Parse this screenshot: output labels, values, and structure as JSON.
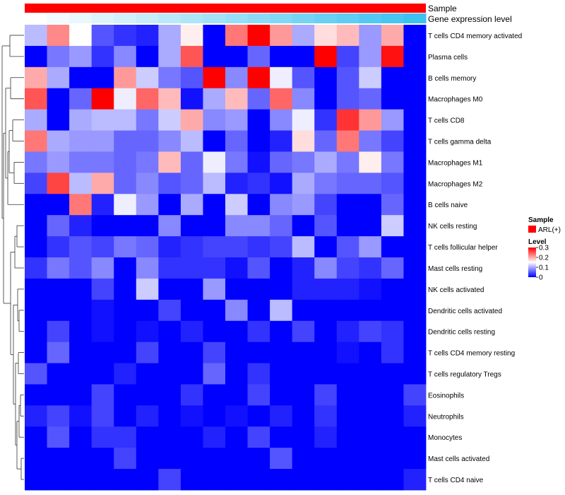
{
  "chart_data": {
    "type": "heatmap",
    "annotation_tracks": [
      {
        "name": "Sample",
        "color": "#ff0000"
      },
      {
        "name": "Gene expression level",
        "gradient": [
          "#ffffff",
          "#3bc2f0"
        ]
      }
    ],
    "rows": [
      "T cells CD4 memory activated",
      "Plasma cells",
      "B cells memory",
      "Macrophages M0",
      "T cells CD8",
      "T cells gamma delta",
      "Macrophages M1",
      "Macrophages M2",
      "B cells naive",
      "NK cells resting",
      "T cells follicular helper",
      "Mast cells resting",
      "NK cells activated",
      "Dendritic cells activated",
      "Dendritic cells resting",
      "T cells CD4 memory resting",
      "T cells regulatory  Tregs",
      "Eosinophils",
      "Neutrophils",
      "Monocytes",
      "Mast cells activated",
      "T cells CD4 naive"
    ],
    "columns": 18,
    "values": [
      [
        0.11,
        0.22,
        0.15,
        0.05,
        0.03,
        0.02,
        0.1,
        0.16,
        0.0,
        0.23,
        0.3,
        0.21,
        0.1,
        0.17,
        0.19,
        0.09,
        0.2,
        0.0
      ],
      [
        0.0,
        0.07,
        0.09,
        0.03,
        0.08,
        0.0,
        0.1,
        0.25,
        0.0,
        0.0,
        0.06,
        0.0,
        0.0,
        0.3,
        0.04,
        0.09,
        0.29,
        0.0
      ],
      [
        0.2,
        0.1,
        0.0,
        0.0,
        0.21,
        0.12,
        0.07,
        0.05,
        0.3,
        0.08,
        0.3,
        0.14,
        0.05,
        0.0,
        0.05,
        0.12,
        0.0,
        0.0
      ],
      [
        0.25,
        0.0,
        0.06,
        0.3,
        0.14,
        0.24,
        0.19,
        0.01,
        0.1,
        0.19,
        0.06,
        0.24,
        0.08,
        0.0,
        0.05,
        0.06,
        0.0,
        0.0
      ],
      [
        0.1,
        0.0,
        0.1,
        0.11,
        0.11,
        0.07,
        0.12,
        0.2,
        0.08,
        0.09,
        0.0,
        0.08,
        0.14,
        0.03,
        0.27,
        0.21,
        0.09,
        0.0
      ],
      [
        0.23,
        0.1,
        0.09,
        0.09,
        0.06,
        0.06,
        0.08,
        0.11,
        0.0,
        0.06,
        0.0,
        0.02,
        0.17,
        0.06,
        0.23,
        0.07,
        0.04,
        0.0
      ],
      [
        0.07,
        0.09,
        0.07,
        0.07,
        0.06,
        0.07,
        0.19,
        0.06,
        0.14,
        0.07,
        0.01,
        0.06,
        0.07,
        0.1,
        0.07,
        0.16,
        0.07,
        0.0
      ],
      [
        0.04,
        0.26,
        0.11,
        0.2,
        0.06,
        0.08,
        0.05,
        0.06,
        0.11,
        0.02,
        0.03,
        0.01,
        0.1,
        0.07,
        0.06,
        0.06,
        0.05,
        0.0
      ],
      [
        0.0,
        0.0,
        0.23,
        0.02,
        0.14,
        0.09,
        0.0,
        0.1,
        0.0,
        0.12,
        0.0,
        0.08,
        0.09,
        0.04,
        0.0,
        0.0,
        0.06,
        0.0
      ],
      [
        0.0,
        0.06,
        0.02,
        0.0,
        0.0,
        0.0,
        0.08,
        0.0,
        0.0,
        0.08,
        0.08,
        0.06,
        0.0,
        0.05,
        0.0,
        0.0,
        0.12,
        0.0
      ],
      [
        0.0,
        0.03,
        0.05,
        0.04,
        0.07,
        0.06,
        0.02,
        0.03,
        0.04,
        0.04,
        0.03,
        0.04,
        0.11,
        0.0,
        0.05,
        0.09,
        0.0,
        0.0
      ],
      [
        0.03,
        0.07,
        0.05,
        0.08,
        0.0,
        0.08,
        0.03,
        0.03,
        0.03,
        0.01,
        0.05,
        0.0,
        0.02,
        0.08,
        0.04,
        0.03,
        0.06,
        0.0
      ],
      [
        0.0,
        0.0,
        0.0,
        0.04,
        0.0,
        0.12,
        0.0,
        0.0,
        0.09,
        0.0,
        0.0,
        0.0,
        0.02,
        0.02,
        0.02,
        0.01,
        0.0,
        0.0
      ],
      [
        0.0,
        0.0,
        0.0,
        0.01,
        0.0,
        0.0,
        0.04,
        0.0,
        0.0,
        0.08,
        0.0,
        0.11,
        0.0,
        0.0,
        0.0,
        0.0,
        0.0,
        0.0
      ],
      [
        0.0,
        0.04,
        0.0,
        0.01,
        0.0,
        0.01,
        0.0,
        0.02,
        0.0,
        0.0,
        0.03,
        0.0,
        0.04,
        0.0,
        0.02,
        0.04,
        0.03,
        0.0
      ],
      [
        0.0,
        0.06,
        0.0,
        0.0,
        0.0,
        0.04,
        0.0,
        0.0,
        0.04,
        0.0,
        0.0,
        0.0,
        0.0,
        0.0,
        0.01,
        0.0,
        0.03,
        0.0
      ],
      [
        0.05,
        0.0,
        0.0,
        0.0,
        0.02,
        0.0,
        0.0,
        0.0,
        0.06,
        0.0,
        0.03,
        0.0,
        0.0,
        0.0,
        0.0,
        0.0,
        0.0,
        0.0
      ],
      [
        0.0,
        0.0,
        0.0,
        0.04,
        0.0,
        0.0,
        0.0,
        0.03,
        0.0,
        0.0,
        0.04,
        0.0,
        0.0,
        0.04,
        0.0,
        0.0,
        0.0,
        0.04
      ],
      [
        0.02,
        0.04,
        0.01,
        0.04,
        0.0,
        0.02,
        0.0,
        0.01,
        0.0,
        0.01,
        0.0,
        0.02,
        0.0,
        0.03,
        0.0,
        0.0,
        0.0,
        0.02
      ],
      [
        0.0,
        0.05,
        0.0,
        0.03,
        0.03,
        0.0,
        0.0,
        0.0,
        0.02,
        0.0,
        0.04,
        0.0,
        0.0,
        0.02,
        0.0,
        0.0,
        0.0,
        0.0
      ],
      [
        0.0,
        0.0,
        0.0,
        0.0,
        0.04,
        0.0,
        0.0,
        0.0,
        0.0,
        0.0,
        0.0,
        0.05,
        0.0,
        0.0,
        0.0,
        0.0,
        0.0,
        0.0
      ],
      [
        0.0,
        0.0,
        0.0,
        0.0,
        0.0,
        0.0,
        0.04,
        0.0,
        0.0,
        0.0,
        0.0,
        0.0,
        0.0,
        0.0,
        0.0,
        0.0,
        0.0,
        0.02
      ]
    ],
    "color_scale": {
      "min": 0,
      "mid": 0.15,
      "max": 0.3,
      "low": "#0000ff",
      "mid_color": "#ffffff",
      "high": "#ff0000"
    },
    "legend": {
      "sample_title": "Sample",
      "sample_entry": "ARL(+)",
      "sample_color": "#ff0000",
      "level_title": "Level",
      "level_ticks": [
        "0.3",
        "0.2",
        "0.1",
        "0"
      ],
      "level_tick_values": [
        0.3,
        0.2,
        0.1,
        0
      ]
    }
  }
}
